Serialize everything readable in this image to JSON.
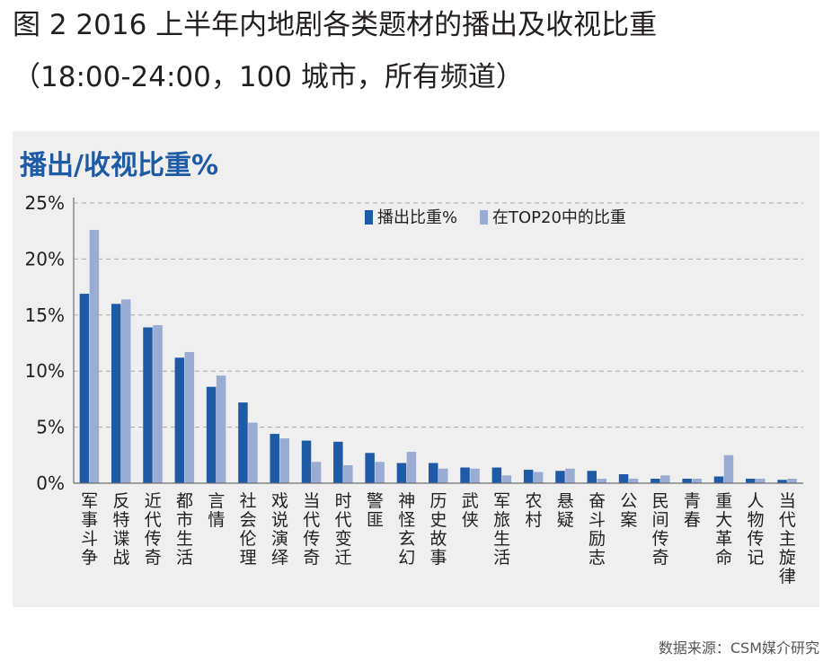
{
  "figure": {
    "title_line1": "图 2 2016 上半年内地剧各类题材的播出及收视比重",
    "title_line2": "（18:00-24:00，100 城市，所有频道）",
    "source": "数据来源：CSM媒介研究"
  },
  "chart_data": {
    "type": "bar",
    "title": "播出/收视比重%",
    "categories": [
      "军事斗争",
      "反特谍战",
      "近代传奇",
      "都市生活",
      "言情",
      "社会伦理",
      "戏说演绎",
      "当代传奇",
      "时代变迁",
      "警匪",
      "神怪玄幻",
      "历史故事",
      "武侠",
      "军旅生活",
      "农村",
      "悬疑",
      "奋斗励志",
      "公案",
      "民间传奇",
      "青春",
      "重大革命",
      "人物传记",
      "当代主旋律"
    ],
    "series": [
      {
        "name": "播出比重%",
        "color": "#1f5aa6",
        "values": [
          16.9,
          16.0,
          13.9,
          11.2,
          8.6,
          7.2,
          4.4,
          3.8,
          3.7,
          2.7,
          1.8,
          1.8,
          1.4,
          1.4,
          1.2,
          1.1,
          1.1,
          0.8,
          0.4,
          0.4,
          0.6,
          0.4,
          0.3
        ]
      },
      {
        "name": "在TOP20中的比重",
        "color": "#9aacd4",
        "values": [
          22.6,
          16.4,
          14.1,
          11.7,
          9.6,
          5.4,
          4.0,
          1.9,
          1.6,
          1.9,
          2.8,
          1.3,
          1.3,
          0.7,
          1.0,
          1.3,
          0.4,
          0.4,
          0.7,
          0.4,
          2.5,
          0.4,
          0.4
        ]
      }
    ],
    "ylim": [
      0,
      25
    ],
    "yticks": [
      0,
      5,
      10,
      15,
      20,
      25
    ],
    "ytick_labels": [
      "0%",
      "5%",
      "10%",
      "15%",
      "20%",
      "25%"
    ],
    "grid": true,
    "legend_position": "top-right"
  }
}
